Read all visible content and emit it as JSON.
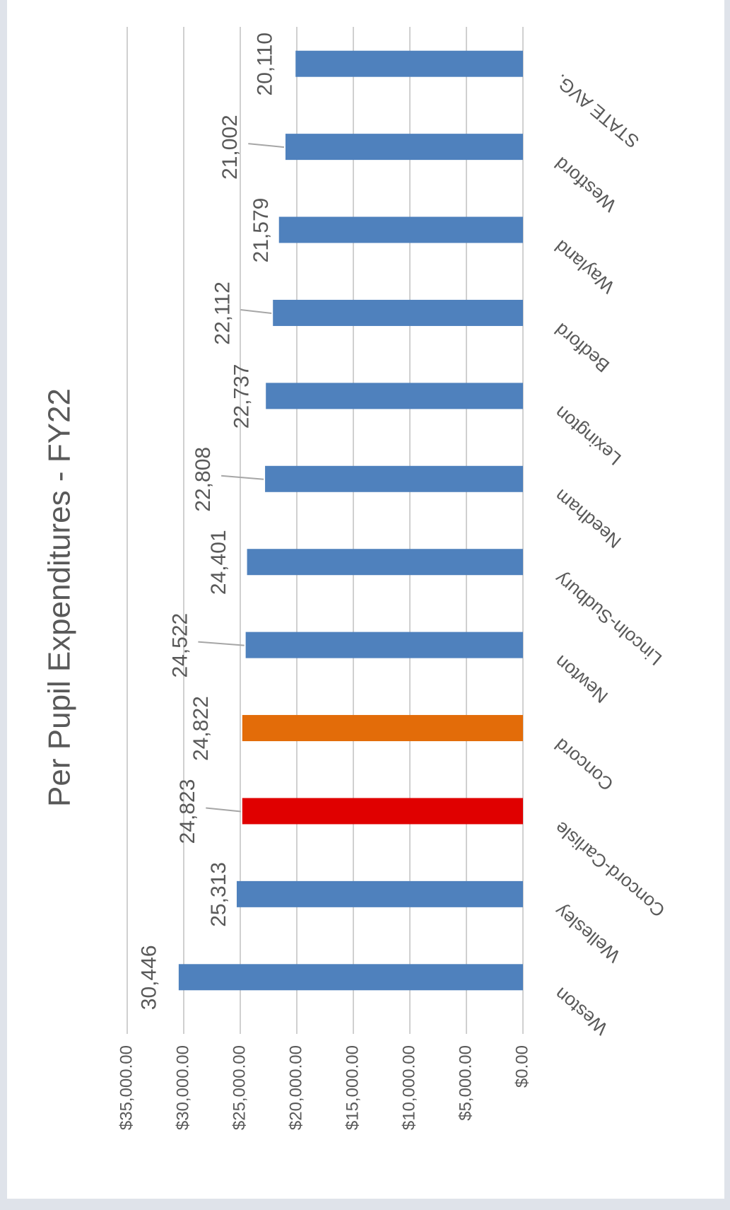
{
  "chart_data": {
    "type": "bar",
    "title": "Per Pupil Expenditures - FY22",
    "categories": [
      "Weston",
      "Wellesley",
      "Concord-Carlisle",
      "Concord",
      "Newton",
      "Lincoln-Sudbury",
      "Needham",
      "Lexington",
      "Bedford",
      "Wayland",
      "Westford",
      "STATE AVG."
    ],
    "values": [
      30446,
      25313,
      24823,
      24822,
      24522,
      24401,
      22808,
      22737,
      22112,
      21579,
      21002,
      20110
    ],
    "value_labels": [
      "30,446",
      "25,313",
      "24,823",
      "24,822",
      "24,522",
      "24,401",
      "22,808",
      "22,737",
      "22,112",
      "21,579",
      "21,002",
      "20,110"
    ],
    "colors": [
      "#4f81bd",
      "#4f81bd",
      "#e00000",
      "#e36c09",
      "#4f81bd",
      "#4f81bd",
      "#4f81bd",
      "#4f81bd",
      "#4f81bd",
      "#4f81bd",
      "#4f81bd",
      "#4f81bd"
    ],
    "ylim": [
      0,
      35000
    ],
    "yticks": [
      {
        "value": 0,
        "label": "$0.00"
      },
      {
        "value": 5000,
        "label": "$5,000.00"
      },
      {
        "value": 10000,
        "label": "$10,000.00"
      },
      {
        "value": 15000,
        "label": "$15,000.00"
      },
      {
        "value": 20000,
        "label": "$20,000.00"
      },
      {
        "value": 25000,
        "label": "$25,000.00"
      },
      {
        "value": 30000,
        "label": "$30,000.00"
      },
      {
        "value": 35000,
        "label": "$35,000.00"
      }
    ],
    "grid": true
  }
}
